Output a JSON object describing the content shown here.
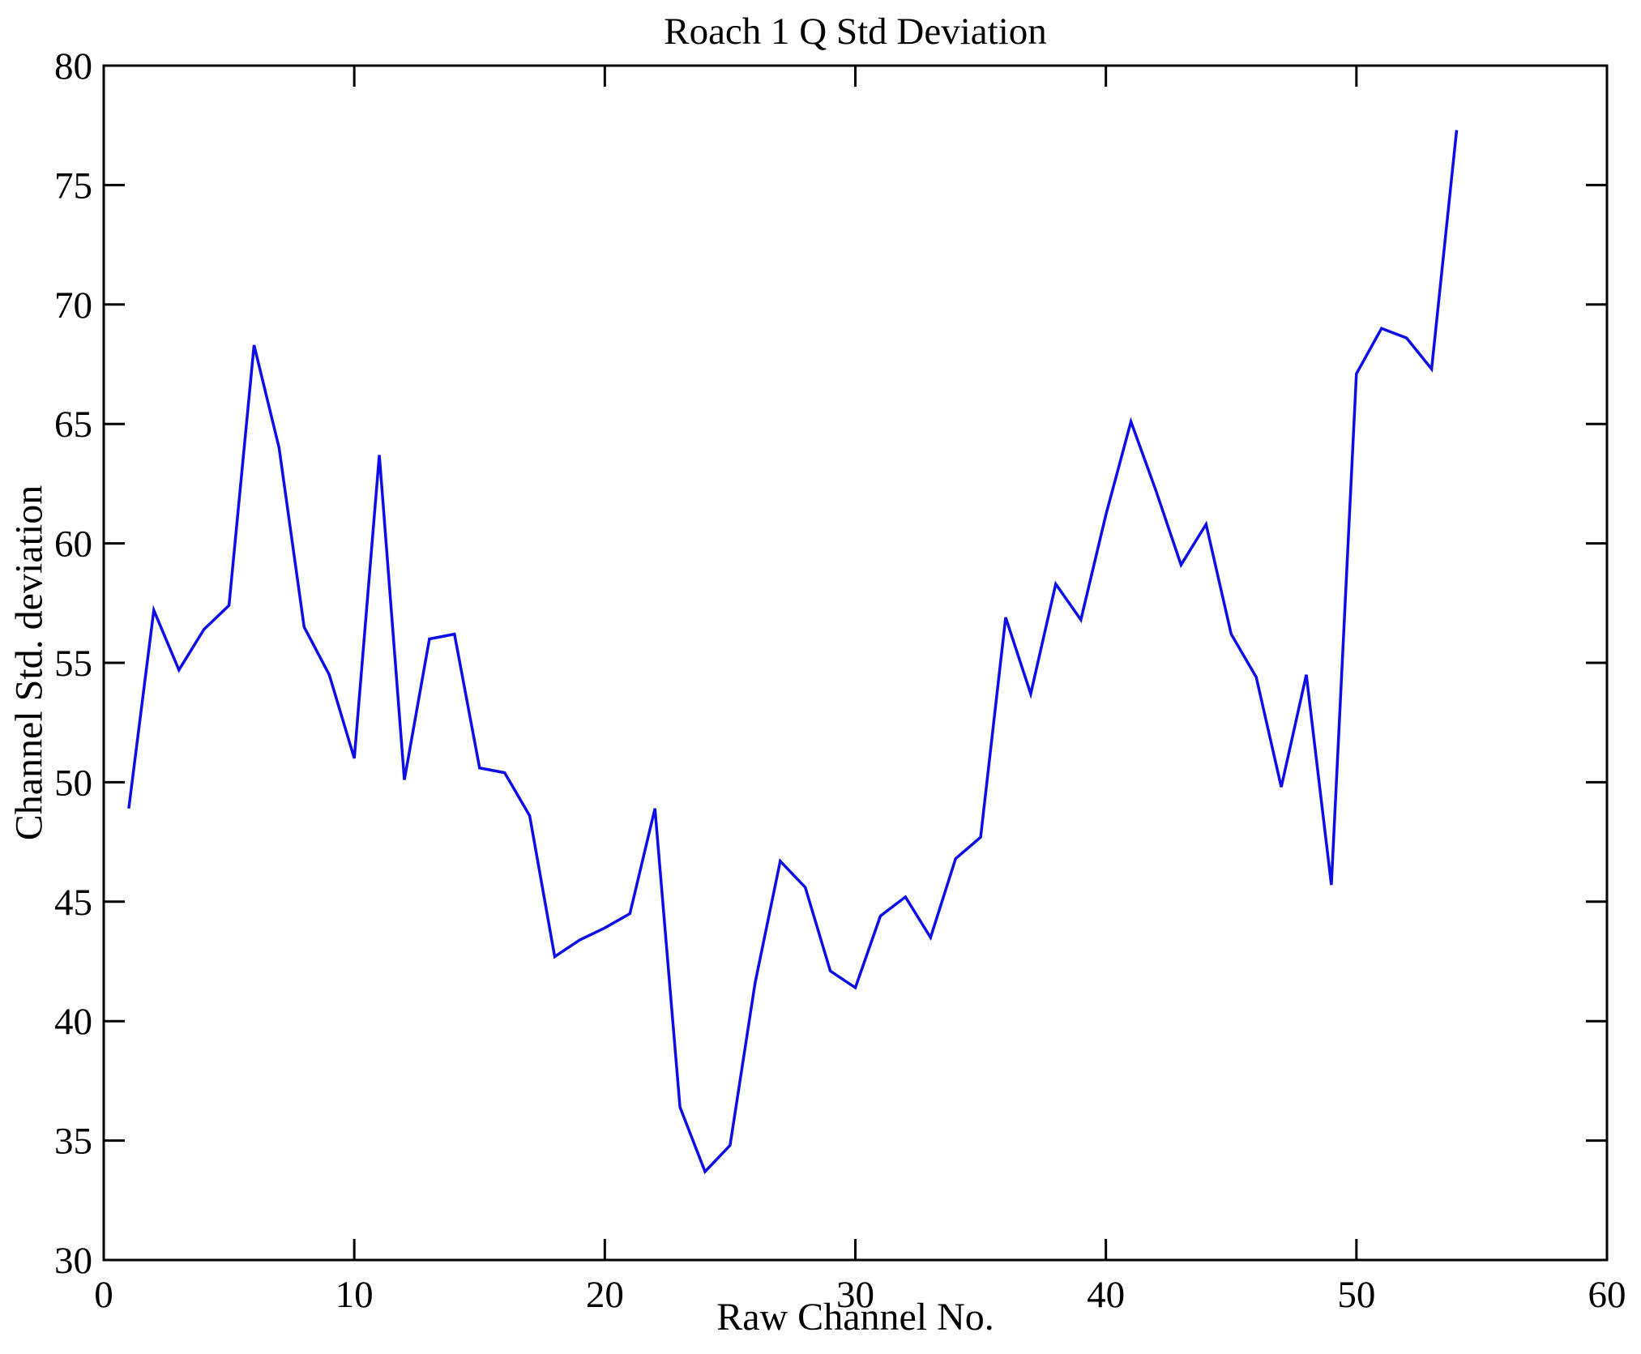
{
  "chart_data": {
    "type": "line",
    "title": "Roach 1 Q Std Deviation",
    "xlabel": "Raw Channel No.",
    "ylabel": "Channel Std. deviation",
    "series": [
      {
        "name": "channel-std-deviation",
        "x": [
          1,
          2,
          3,
          4,
          5,
          6,
          7,
          8,
          9,
          10,
          11,
          12,
          13,
          14,
          15,
          16,
          17,
          18,
          19,
          20,
          21,
          22,
          23,
          24,
          25,
          26,
          27,
          28,
          29,
          30,
          31,
          32,
          33,
          34,
          35,
          36,
          37,
          38,
          39,
          40,
          41,
          42,
          43,
          44,
          45,
          46,
          47,
          48,
          49,
          50,
          51,
          52,
          53,
          54
        ],
        "values": [
          48.9,
          57.2,
          54.7,
          56.4,
          57.4,
          68.3,
          64.0,
          56.5,
          54.5,
          51.0,
          63.7,
          50.1,
          56.0,
          56.2,
          50.6,
          50.4,
          48.6,
          42.7,
          43.4,
          43.9,
          44.5,
          48.9,
          36.4,
          33.7,
          34.8,
          41.6,
          46.7,
          45.6,
          42.1,
          41.4,
          44.4,
          45.2,
          43.5,
          46.8,
          47.7,
          56.9,
          53.7,
          58.3,
          56.8,
          61.2,
          65.1,
          62.2,
          59.1,
          60.8,
          56.2,
          54.4,
          49.8,
          54.5,
          45.7,
          67.1,
          69.0,
          68.6,
          67.3,
          77.3
        ]
      }
    ],
    "xlim": [
      0,
      60
    ],
    "ylim": [
      30,
      80
    ],
    "xticks": [
      0,
      10,
      20,
      30,
      40,
      50,
      60
    ],
    "yticks": [
      30,
      35,
      40,
      45,
      50,
      55,
      60,
      65,
      70,
      75,
      80
    ],
    "grid": false,
    "legend": "none",
    "line_color": "#0d0de8",
    "axis_color": "#000000",
    "background_color": "#ffffff"
  }
}
